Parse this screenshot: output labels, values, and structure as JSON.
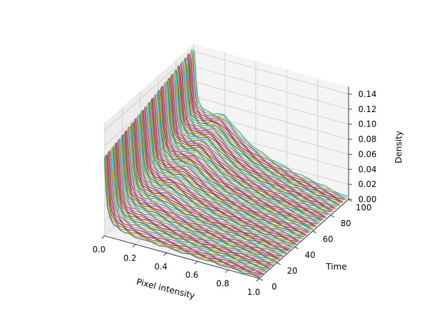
{
  "chart_data": {
    "type": "line",
    "projection": "3d",
    "xlabel": "Pixel intensity",
    "ylabel": "Time",
    "zlabel": "Density",
    "xlim": [
      0.0,
      1.0
    ],
    "ylim": [
      0,
      100
    ],
    "zlim": [
      0.0,
      0.15
    ],
    "xticks": [
      "0.0",
      "0.2",
      "0.4",
      "0.6",
      "0.8",
      "1.0"
    ],
    "yticks": [
      "0",
      "20",
      "40",
      "60",
      "80",
      "100"
    ],
    "zticks": [
      "0.00",
      "0.02",
      "0.04",
      "0.06",
      "0.08",
      "0.10",
      "0.12",
      "0.14"
    ],
    "grid": true,
    "series_count": 100,
    "time_start": 0,
    "time_step": 1,
    "x_bins": [
      0.0,
      0.01,
      0.02,
      0.03,
      0.04,
      0.06,
      0.08,
      0.1,
      0.13,
      0.16,
      0.2,
      0.25,
      0.3,
      0.35,
      0.4,
      0.45,
      0.5,
      0.55,
      0.6,
      0.65,
      0.7,
      0.75,
      0.8,
      0.85,
      0.9,
      0.95,
      1.0
    ],
    "density_profile_early": [
      0.105,
      0.06,
      0.04,
      0.03,
      0.024,
      0.019,
      0.016,
      0.014,
      0.012,
      0.011,
      0.01,
      0.009,
      0.0085,
      0.008,
      0.0075,
      0.007,
      0.0065,
      0.006,
      0.0055,
      0.005,
      0.0045,
      0.004,
      0.0035,
      0.003,
      0.0025,
      0.002,
      0.0015
    ],
    "density_profile_late": [
      0.145,
      0.14,
      0.105,
      0.085,
      0.075,
      0.07,
      0.068,
      0.066,
      0.066,
      0.067,
      0.068,
      0.06,
      0.05,
      0.042,
      0.036,
      0.031,
      0.027,
      0.024,
      0.021,
      0.018,
      0.016,
      0.014,
      0.012,
      0.01,
      0.008,
      0.006,
      0.004
    ],
    "colors": [
      "#1f77b4",
      "#ff7f0e",
      "#2ca02c",
      "#d62728",
      "#9467bd",
      "#8c564b",
      "#e377c2",
      "#7f7f7f",
      "#bcbd22",
      "#17becf"
    ]
  }
}
